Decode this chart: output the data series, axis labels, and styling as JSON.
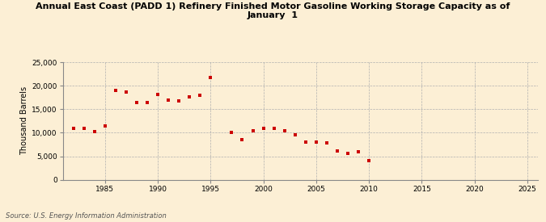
{
  "title": "Annual East Coast (PADD 1) Refinery Finished Motor Gasoline Working Storage Capacity as of\nJanuary  1",
  "ylabel": "Thousand Barrels",
  "source": "Source: U.S. Energy Information Administration",
  "background_color": "#fcefd5",
  "marker_color": "#cc0000",
  "xlim": [
    1981,
    2026
  ],
  "ylim": [
    0,
    25000
  ],
  "xticks": [
    1985,
    1990,
    1995,
    2000,
    2005,
    2010,
    2015,
    2020,
    2025
  ],
  "yticks": [
    0,
    5000,
    10000,
    15000,
    20000,
    25000
  ],
  "data": [
    [
      1982,
      10900
    ],
    [
      1983,
      10900
    ],
    [
      1984,
      10200
    ],
    [
      1985,
      11500
    ],
    [
      1986,
      19000
    ],
    [
      1987,
      18600
    ],
    [
      1988,
      16400
    ],
    [
      1989,
      16500
    ],
    [
      1990,
      18200
    ],
    [
      1991,
      16900
    ],
    [
      1992,
      16700
    ],
    [
      1993,
      17700
    ],
    [
      1994,
      18000
    ],
    [
      1995,
      21700
    ],
    [
      1997,
      10000
    ],
    [
      1998,
      8600
    ],
    [
      1999,
      10500
    ],
    [
      2000,
      10900
    ],
    [
      2001,
      10900
    ],
    [
      2002,
      10400
    ],
    [
      2003,
      9500
    ],
    [
      2004,
      8000
    ],
    [
      2005,
      8000
    ],
    [
      2006,
      7800
    ],
    [
      2007,
      6100
    ],
    [
      2008,
      5700
    ],
    [
      2009,
      6000
    ],
    [
      2010,
      4000
    ]
  ]
}
